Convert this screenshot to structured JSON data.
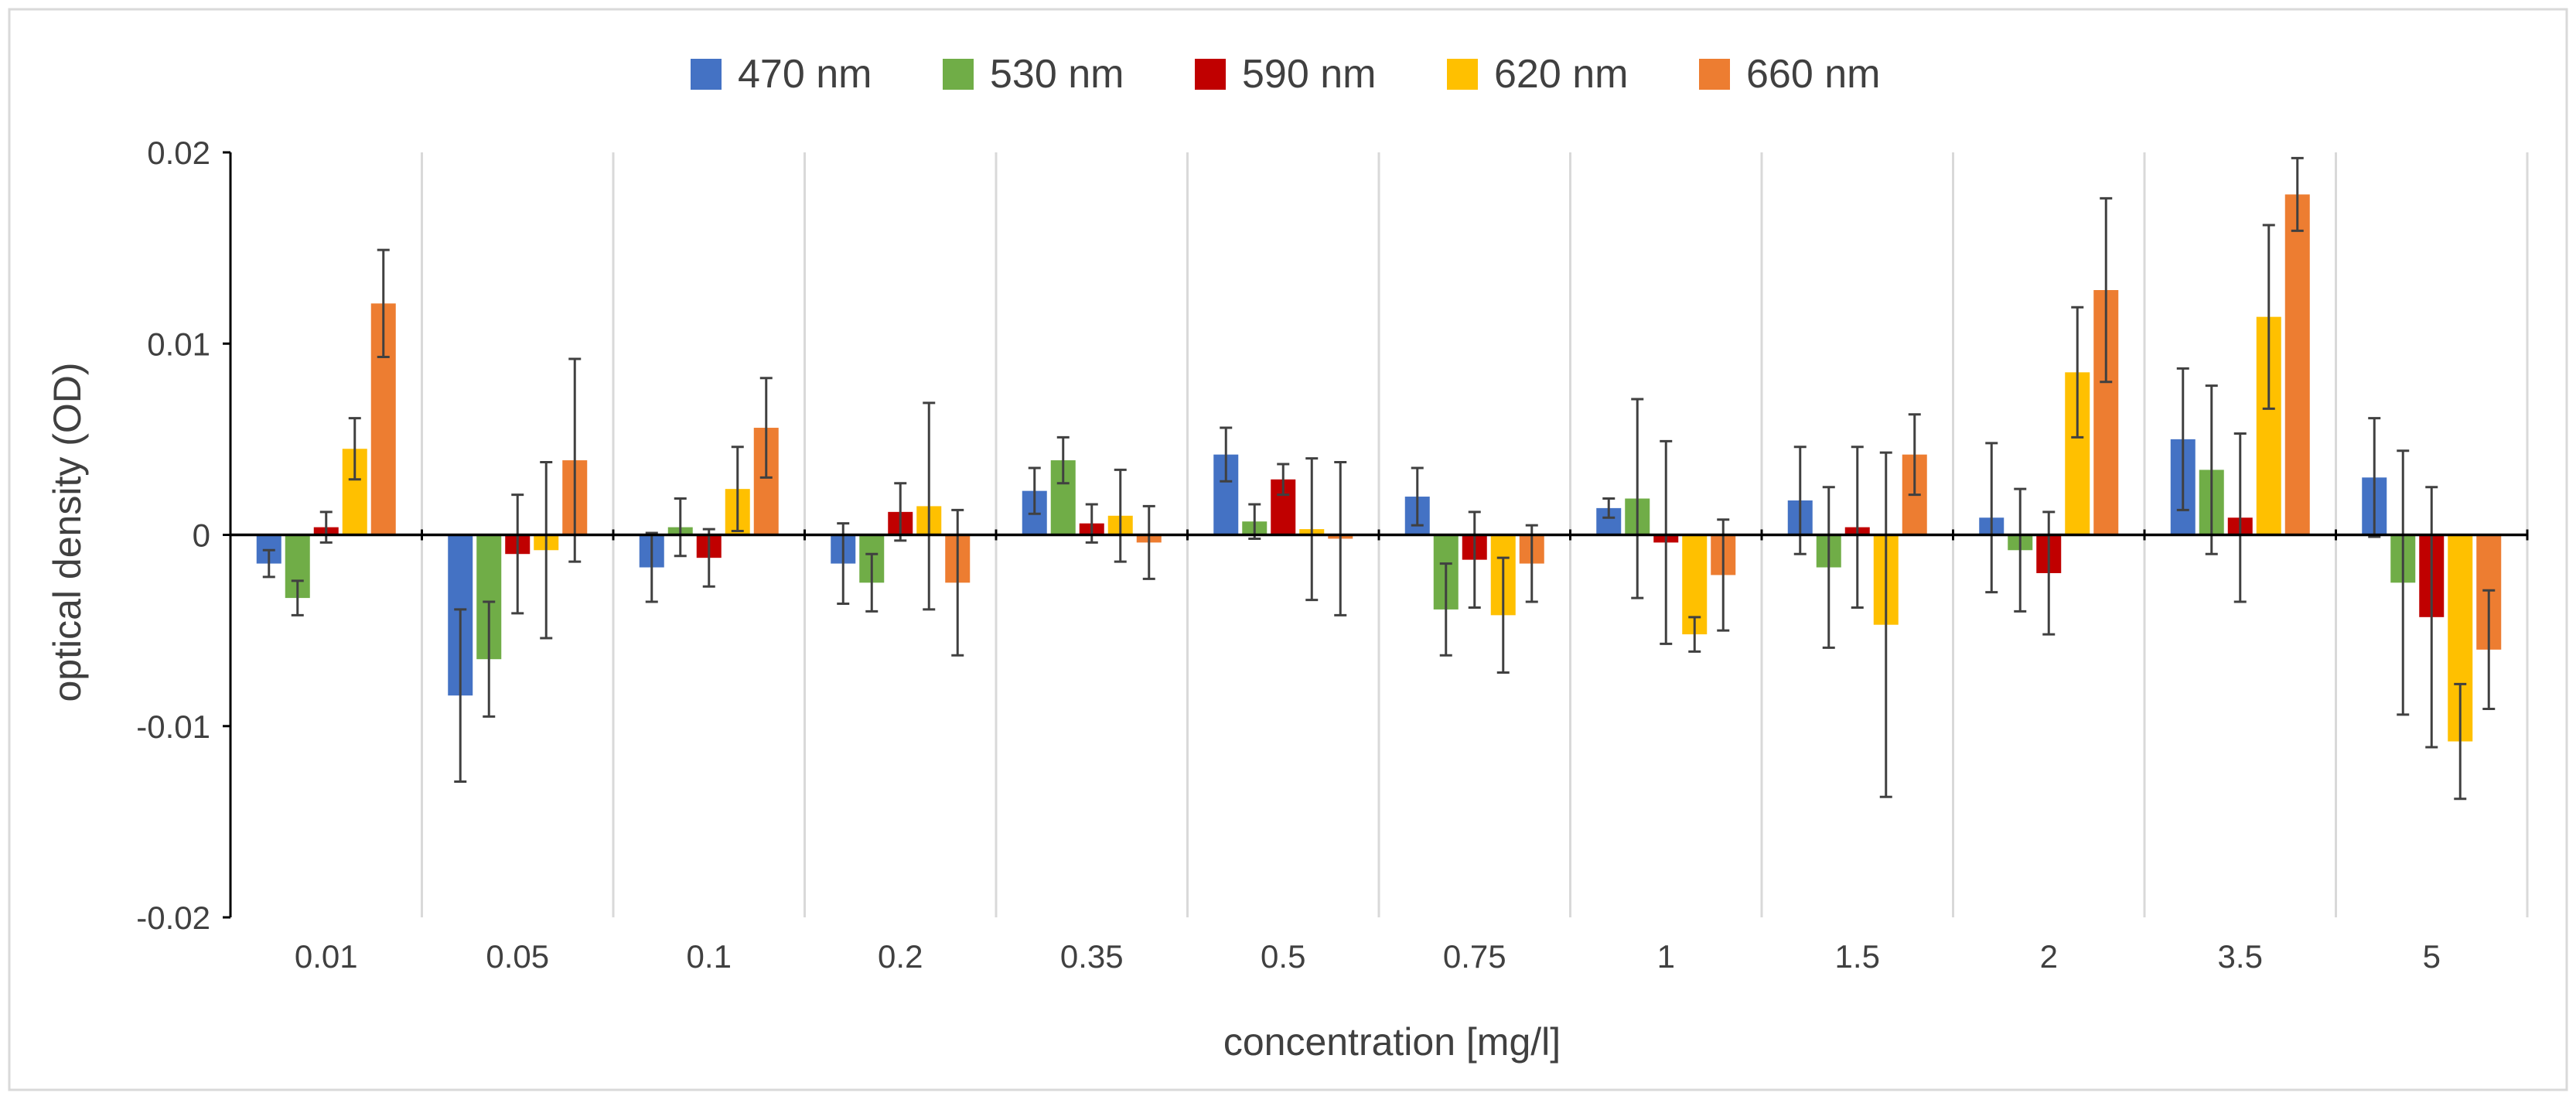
{
  "chart_data": {
    "type": "bar",
    "title": "",
    "xlabel": "concentration [mg/l]",
    "ylabel": "optical density (OD)",
    "ylim": [
      -0.02,
      0.02
    ],
    "yticks": [
      {
        "value": -0.02,
        "label": "-0.02"
      },
      {
        "value": -0.01,
        "label": "-0.01"
      },
      {
        "value": 0,
        "label": "0"
      },
      {
        "value": 0.01,
        "label": "0.01"
      },
      {
        "value": 0.02,
        "label": "0.02"
      }
    ],
    "legend_position": "top",
    "categories": [
      "0.01",
      "0.05",
      "0.1",
      "0.2",
      "0.35",
      "0.5",
      "0.75",
      "1",
      "1.5",
      "2",
      "3.5",
      "5"
    ],
    "series": [
      {
        "name": "470 nm",
        "color": "#4472C4",
        "values": [
          -0.0015,
          -0.0084,
          -0.0017,
          -0.0015,
          0.0023,
          0.0042,
          0.002,
          0.0014,
          0.0018,
          0.0009,
          0.005,
          0.003
        ],
        "errors": [
          0.0007,
          0.0045,
          0.0018,
          0.0021,
          0.0012,
          0.0014,
          0.0015,
          0.0005,
          0.0028,
          0.0039,
          0.0037,
          0.0031
        ]
      },
      {
        "name": "530 nm",
        "color": "#70AD47",
        "values": [
          -0.0033,
          -0.0065,
          0.0004,
          -0.0025,
          0.0039,
          0.0007,
          -0.0039,
          0.0019,
          -0.0017,
          -0.0008,
          0.0034,
          -0.0025
        ],
        "errors": [
          0.0009,
          0.003,
          0.0015,
          0.0015,
          0.0012,
          0.0009,
          0.0024,
          0.0052,
          0.0042,
          0.0032,
          0.0044,
          0.0069
        ]
      },
      {
        "name": "590 nm",
        "color": "#C00000",
        "values": [
          0.0004,
          -0.001,
          -0.0012,
          0.0012,
          0.0006,
          0.0029,
          -0.0013,
          -0.0004,
          0.0004,
          -0.002,
          0.0009,
          -0.0043
        ],
        "errors": [
          0.0008,
          0.0031,
          0.0015,
          0.0015,
          0.001,
          0.0008,
          0.0025,
          0.0053,
          0.0042,
          0.0032,
          0.0044,
          0.0068
        ]
      },
      {
        "name": "620 nm",
        "color": "#FFC000",
        "values": [
          0.0045,
          -0.0008,
          0.0024,
          0.0015,
          0.001,
          0.0003,
          -0.0042,
          -0.0052,
          -0.0047,
          0.0085,
          0.0114,
          -0.0108
        ],
        "errors": [
          0.0016,
          0.0046,
          0.0022,
          0.0054,
          0.0024,
          0.0037,
          0.003,
          0.0009,
          0.009,
          0.0034,
          0.0048,
          0.003
        ]
      },
      {
        "name": "660 nm",
        "color": "#ED7D31",
        "values": [
          0.0121,
          0.0039,
          0.0056,
          -0.0025,
          -0.0004,
          -0.0002,
          -0.0015,
          -0.0021,
          0.0042,
          0.0128,
          0.0178,
          -0.006
        ],
        "errors": [
          0.0028,
          0.0053,
          0.0026,
          0.0038,
          0.0019,
          0.004,
          0.002,
          0.0029,
          0.0021,
          0.0048,
          0.0019,
          0.0031
        ]
      }
    ]
  }
}
